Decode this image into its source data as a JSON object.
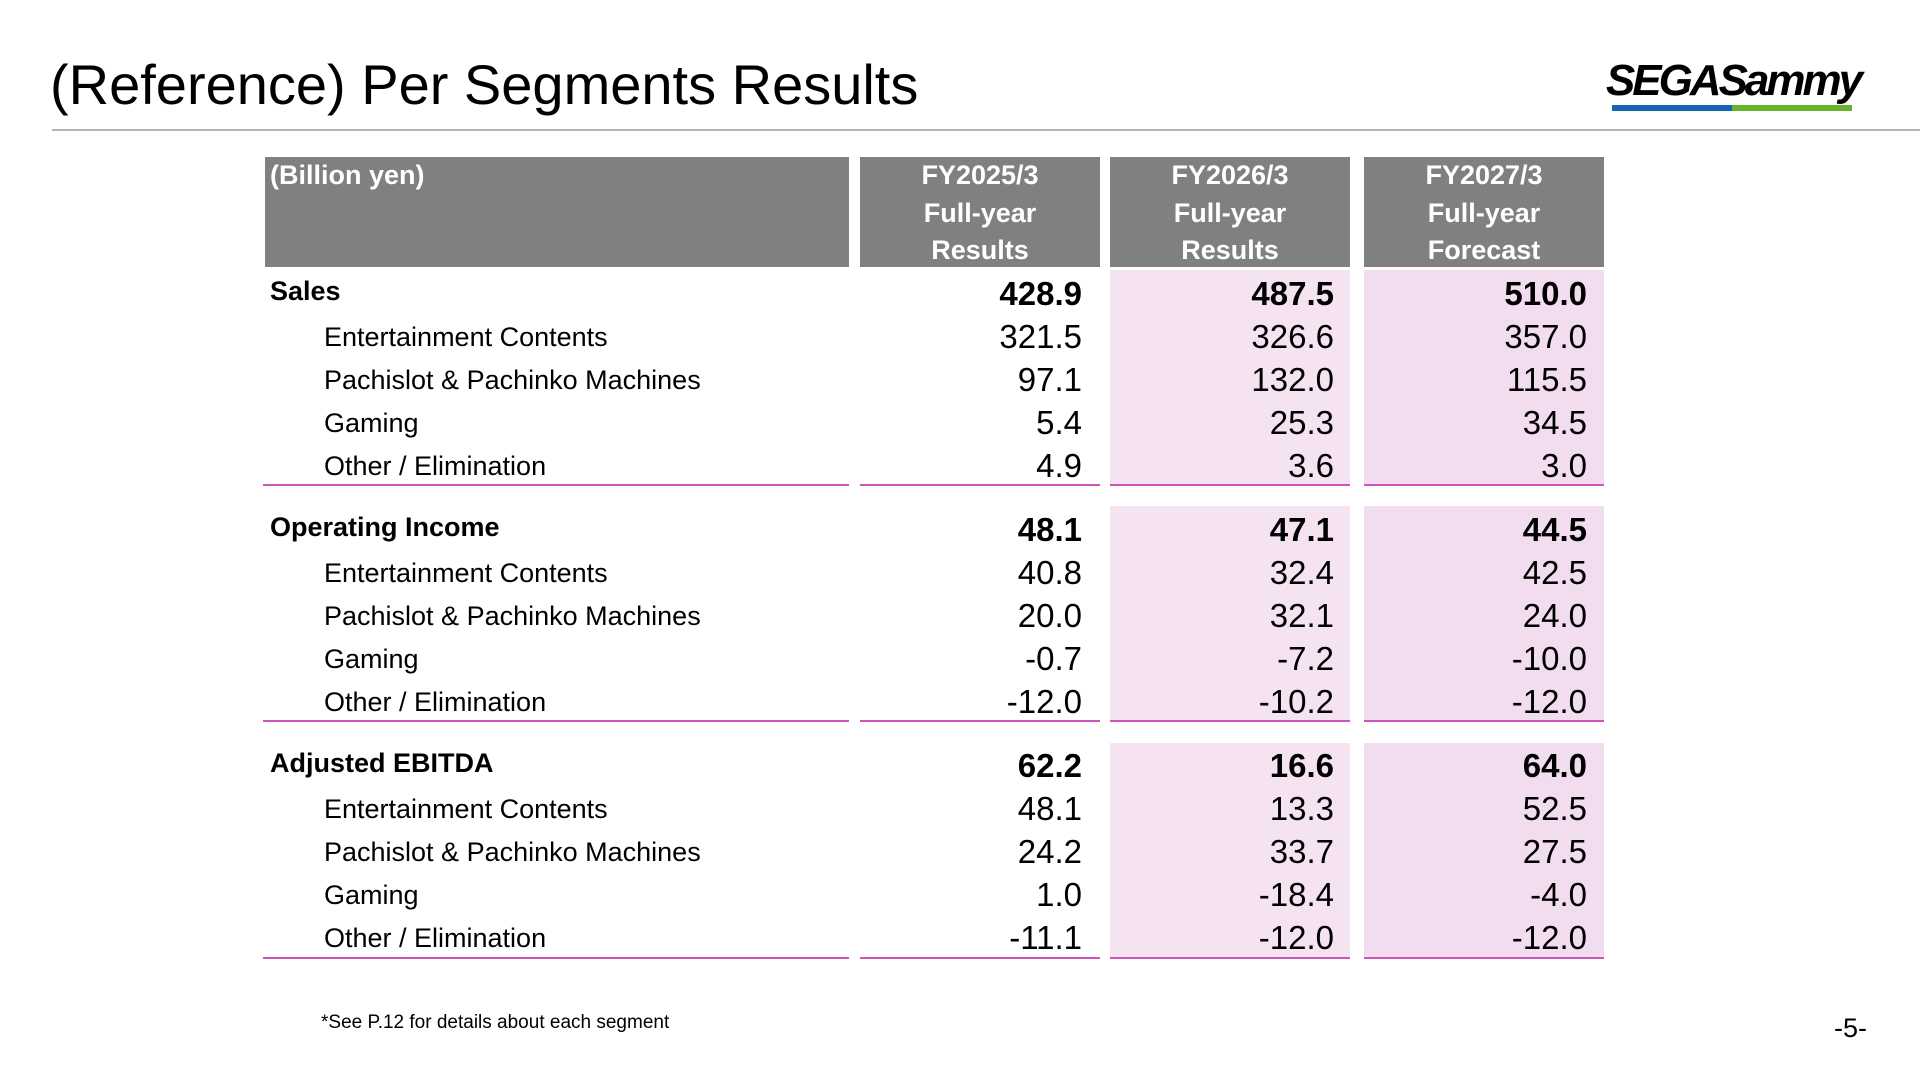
{
  "page": {
    "title": "(Reference) Per Segments Results",
    "logo_text": "SEGASammy",
    "footnote": "*See P.12 for details about each segment",
    "page_number": "-5-"
  },
  "table": {
    "unit_label": "(Billion yen)",
    "columns": [
      {
        "line1": "FY2025/3",
        "line2": "Full-year",
        "line3": "Results"
      },
      {
        "line1": "FY2026/3",
        "line2": "Full-year",
        "line3": "Results"
      },
      {
        "line1": "FY2027/3",
        "line2": "Full-year",
        "line3": "Forecast"
      }
    ],
    "sections": [
      {
        "title": "Sales",
        "total": [
          "428.9",
          "487.5",
          "510.0"
        ],
        "rows": [
          {
            "label": "Entertainment Contents",
            "values": [
              "321.5",
              "326.6",
              "357.0"
            ]
          },
          {
            "label": "Pachislot & Pachinko Machines",
            "values": [
              "97.1",
              "132.0",
              "115.5"
            ]
          },
          {
            "label": "Gaming",
            "values": [
              "5.4",
              "25.3",
              "34.5"
            ]
          },
          {
            "label": "Other / Elimination",
            "values": [
              "4.9",
              "3.6",
              "3.0"
            ]
          }
        ]
      },
      {
        "title": "Operating Income",
        "total": [
          "48.1",
          "47.1",
          "44.5"
        ],
        "rows": [
          {
            "label": "Entertainment Contents",
            "values": [
              "40.8",
              "32.4",
              "42.5"
            ]
          },
          {
            "label": "Pachislot & Pachinko Machines",
            "values": [
              "20.0",
              "32.1",
              "24.0"
            ]
          },
          {
            "label": "Gaming",
            "values": [
              "-0.7",
              "-7.2",
              "-10.0"
            ]
          },
          {
            "label": "Other / Elimination",
            "values": [
              "-12.0",
              "-10.2",
              "-12.0"
            ]
          }
        ]
      },
      {
        "title": "Adjusted EBITDA",
        "total": [
          "62.2",
          "16.6",
          "64.0"
        ],
        "rows": [
          {
            "label": "Entertainment Contents",
            "values": [
              "48.1",
              "13.3",
              "52.5"
            ]
          },
          {
            "label": "Pachislot & Pachinko Machines",
            "values": [
              "24.2",
              "33.7",
              "27.5"
            ]
          },
          {
            "label": "Gaming",
            "values": [
              "1.0",
              "-18.4",
              "-4.0"
            ]
          },
          {
            "label": "Other / Elimination",
            "values": [
              "-11.1",
              "-12.0",
              "-12.0"
            ]
          }
        ]
      }
    ]
  },
  "colors": {
    "header_bg": "#808080",
    "forecast_tint": "#f2dcef",
    "results_tint": "#f5e3f2",
    "separator": "#cc55b7",
    "logo_blue": "#1464b4",
    "logo_green": "#6ab42d"
  }
}
